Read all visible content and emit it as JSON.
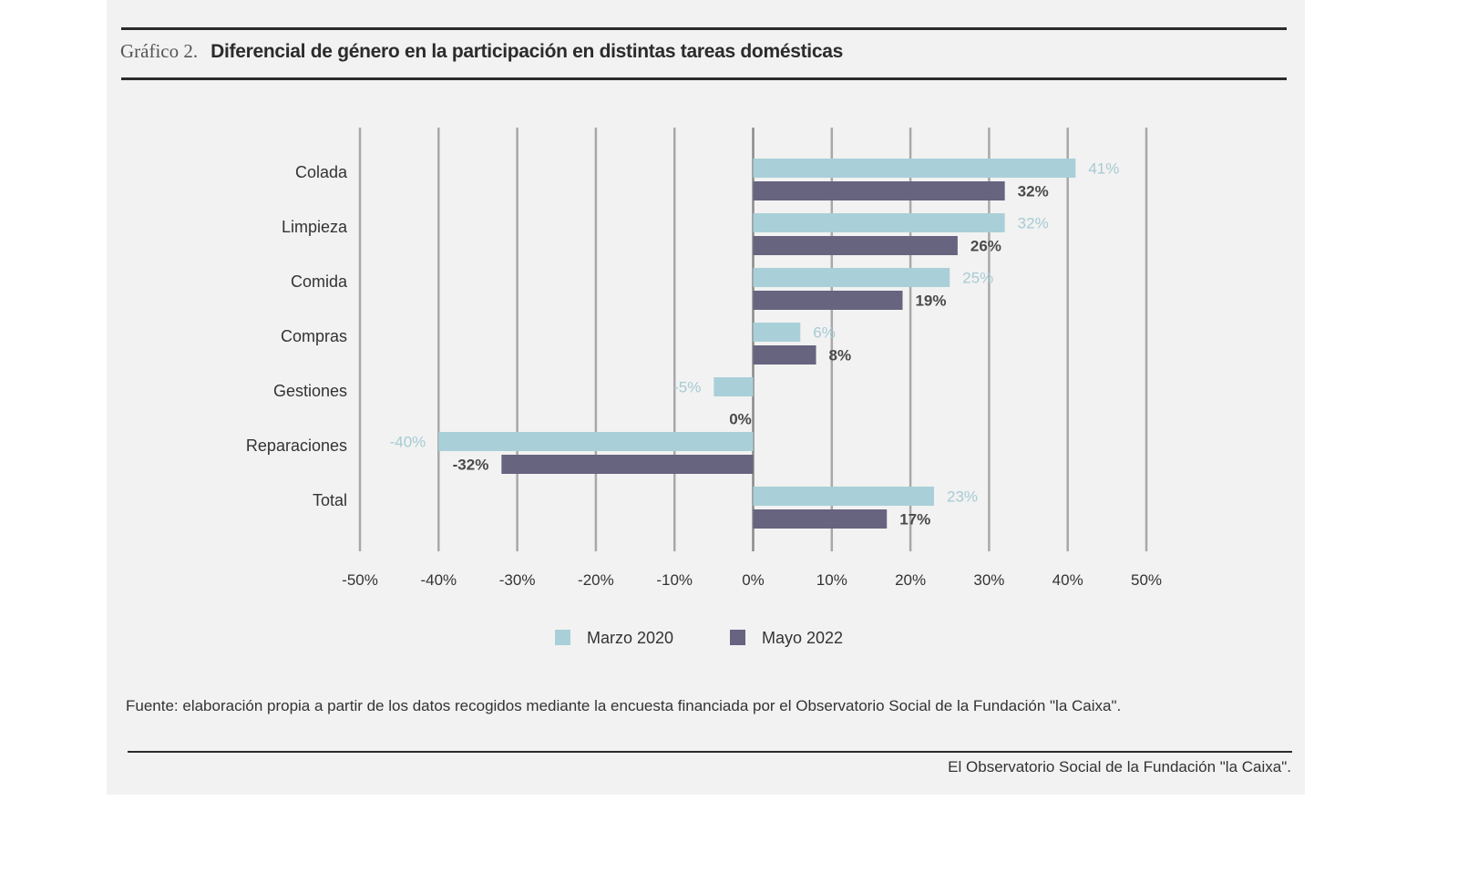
{
  "figure_label": "Gráfico 2.",
  "chart_data": {
    "type": "bar",
    "orientation": "horizontal",
    "title": "Diferencial de género en la participación en distintas tareas domésticas",
    "categories": [
      "Colada",
      "Limpieza",
      "Comida",
      "Compras",
      "Gestiones",
      "Reparaciones",
      "Total"
    ],
    "series": [
      {
        "name": "Marzo 2020",
        "color": "#a9d0d8",
        "label_color": "#a6cbd3",
        "values": [
          41,
          32,
          25,
          6,
          -5,
          -40,
          23
        ],
        "labels": [
          "41%",
          "32%",
          "25%",
          "6%",
          "-5%",
          "-40%",
          "23%"
        ]
      },
      {
        "name": "Mayo 2022",
        "color": "#66647f",
        "label_color": "#4a4a4a",
        "values": [
          32,
          26,
          19,
          8,
          0,
          -32,
          17
        ],
        "labels": [
          "32%",
          "26%",
          "19%",
          "8%",
          "0%",
          "-32%",
          "17%"
        ]
      }
    ],
    "xlim": [
      -50,
      50
    ],
    "xticks": [
      -50,
      -40,
      -30,
      -20,
      -10,
      0,
      10,
      20,
      30,
      40,
      50
    ],
    "xtick_labels": [
      "-50%",
      "-40%",
      "-30%",
      "-20%",
      "-10%",
      "0%",
      "10%",
      "20%",
      "30%",
      "40%",
      "50%"
    ],
    "grid": "vertical",
    "legend_position": "bottom"
  },
  "source": "Fuente: elaboración propia a partir de los datos recogidos mediante la encuesta financiada por el Observatorio Social de la Fundación \"la Caixa\".",
  "credit": "El Observatorio Social de la Fundación \"la Caixa\"."
}
